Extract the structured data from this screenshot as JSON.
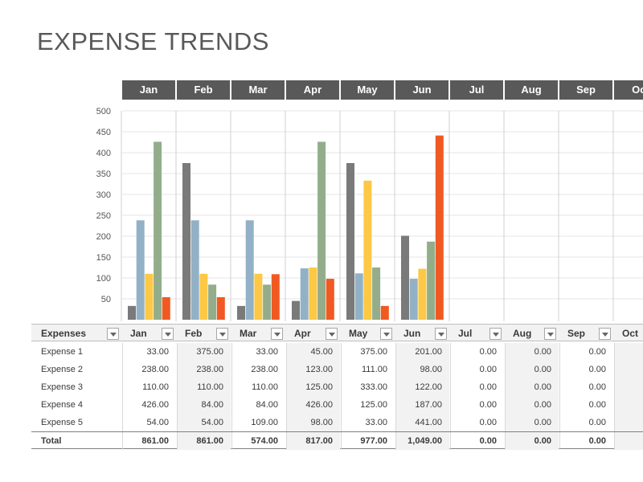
{
  "title": "EXPENSE TRENDS",
  "colors": {
    "header_bg": "#595959",
    "series": [
      "#7a7a7a",
      "#92b1c6",
      "#fcc845",
      "#93ad8b",
      "#f05a22"
    ],
    "grid": "#e4e4e4",
    "band": "#f2f2f2"
  },
  "chart_data": {
    "type": "bar",
    "categories": [
      "Jan",
      "Feb",
      "Mar",
      "Apr",
      "May",
      "Jun",
      "Jul",
      "Aug",
      "Sep",
      "Oct"
    ],
    "series": [
      {
        "name": "Expense 1",
        "values": [
          33,
          375,
          33,
          45,
          375,
          201,
          0,
          0,
          0,
          null
        ]
      },
      {
        "name": "Expense 2",
        "values": [
          238,
          238,
          238,
          123,
          111,
          98,
          0,
          0,
          0,
          null
        ]
      },
      {
        "name": "Expense 3",
        "values": [
          110,
          110,
          110,
          125,
          333,
          122,
          0,
          0,
          0,
          null
        ]
      },
      {
        "name": "Expense 4",
        "values": [
          426,
          84,
          84,
          426,
          125,
          187,
          0,
          0,
          0,
          null
        ]
      },
      {
        "name": "Expense 5",
        "values": [
          54,
          54,
          109,
          98,
          33,
          441,
          0,
          0,
          0,
          null
        ]
      }
    ],
    "yticks": [
      50,
      100,
      150,
      200,
      250,
      300,
      350,
      400,
      450,
      500
    ],
    "ylim": [
      0,
      500
    ],
    "grid": true
  },
  "table": {
    "header_label": "Expenses",
    "months": [
      "Jan",
      "Feb",
      "Mar",
      "Apr",
      "May",
      "Jun",
      "Jul",
      "Aug",
      "Sep",
      "Oct"
    ],
    "rows": [
      {
        "label": "Expense 1",
        "values": [
          "33.00",
          "375.00",
          "33.00",
          "45.00",
          "375.00",
          "201.00",
          "0.00",
          "0.00",
          "0.00"
        ]
      },
      {
        "label": "Expense 2",
        "values": [
          "238.00",
          "238.00",
          "238.00",
          "123.00",
          "111.00",
          "98.00",
          "0.00",
          "0.00",
          "0.00"
        ]
      },
      {
        "label": "Expense 3",
        "values": [
          "110.00",
          "110.00",
          "110.00",
          "125.00",
          "333.00",
          "122.00",
          "0.00",
          "0.00",
          "0.00"
        ]
      },
      {
        "label": "Expense 4",
        "values": [
          "426.00",
          "84.00",
          "84.00",
          "426.00",
          "125.00",
          "187.00",
          "0.00",
          "0.00",
          "0.00"
        ]
      },
      {
        "label": "Expense 5",
        "values": [
          "54.00",
          "54.00",
          "109.00",
          "98.00",
          "33.00",
          "441.00",
          "0.00",
          "0.00",
          "0.00"
        ]
      }
    ],
    "total": {
      "label": "Total",
      "values": [
        "861.00",
        "861.00",
        "574.00",
        "817.00",
        "977.00",
        "1,049.00",
        "0.00",
        "0.00",
        "0.00"
      ]
    }
  }
}
